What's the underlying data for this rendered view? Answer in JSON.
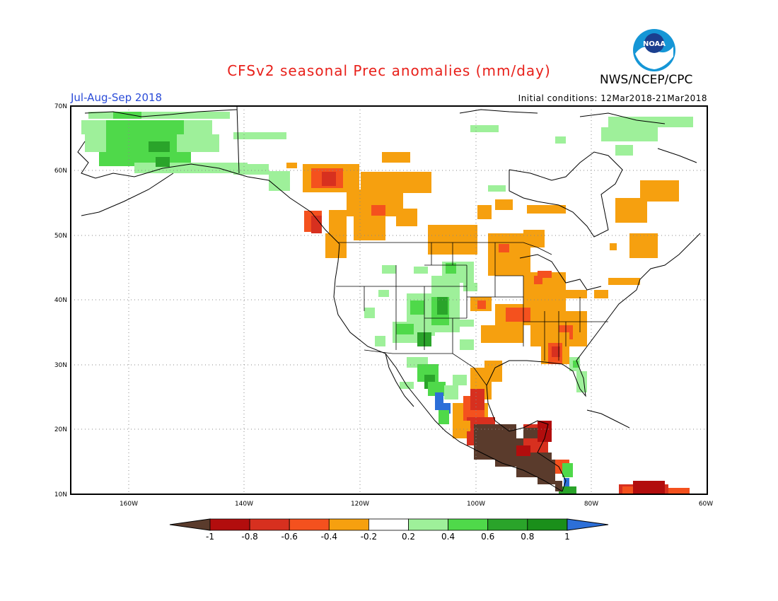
{
  "title": "CFSv2 seasonal Prec anomalies (mm/day)",
  "organization": "NWS/NCEP/CPC",
  "logo": {
    "name": "noaa-logo",
    "text": "NOAA"
  },
  "season": "Jul-Aug-Sep 2018",
  "initial_conditions": "Initial conditions: 12Mar2018-21Mar2018",
  "map": {
    "lat_labels": [
      "70N",
      "60N",
      "50N",
      "40N",
      "30N",
      "20N",
      "10N"
    ],
    "lon_labels": [
      "160W",
      "140W",
      "120W",
      "100W",
      "80W",
      "60W"
    ]
  },
  "colorbar": {
    "labels": [
      "-1",
      "-0.8",
      "-0.6",
      "-0.4",
      "-0.2",
      "0.2",
      "0.4",
      "0.6",
      "0.8",
      "1"
    ],
    "colors": [
      "#5a3b2c",
      "#b20d0d",
      "#d7301f",
      "#f4511e",
      "#f6a00f",
      "#ffffff",
      "#9ef09a",
      "#4fd94a",
      "#2aa42a",
      "#1a8f1a",
      "#2c6fd8"
    ]
  }
}
